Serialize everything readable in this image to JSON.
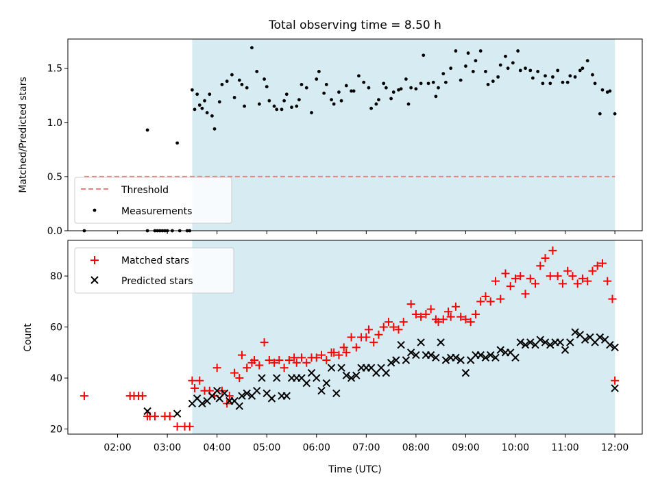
{
  "chart_data": [
    {
      "type": "scatter",
      "title": "Total observing time = 8.50 h",
      "ylabel": "Matched/Predicted stars",
      "xlabel": "",
      "ylim": [
        0,
        1.77
      ],
      "yticks": [
        "0.0",
        "0.5",
        "1.0",
        "1.5"
      ],
      "ytick_values": [
        0,
        0.5,
        1.0,
        1.5
      ],
      "xticks_values": [
        2,
        3,
        4,
        5,
        6,
        7,
        8,
        9,
        10,
        11,
        12
      ],
      "x_unit": "hours UTC",
      "xlim": [
        1.0,
        12.55
      ],
      "shaded_region": [
        3.5,
        12.0
      ],
      "shade_color": "#add8e6",
      "threshold_color": "#f08080",
      "point_color": "#000000",
      "legend_position": "lower left",
      "legend": [
        "Threshold",
        "Measurements"
      ],
      "threshold": {
        "name": "Threshold",
        "y": 0.5,
        "x": [
          1.33,
          12.0
        ]
      },
      "series": [
        {
          "name": "Measurements",
          "x": [
            1.33,
            2.6,
            2.6,
            2.75,
            2.8,
            2.85,
            2.9,
            2.95,
            3.0,
            3.1,
            3.2,
            3.25,
            3.4,
            3.45,
            3.5,
            3.55,
            3.6,
            3.65,
            3.7,
            3.75,
            3.8,
            3.85,
            3.9,
            3.95,
            4.05,
            4.1,
            4.2,
            4.3,
            4.35,
            4.45,
            4.5,
            4.55,
            4.6,
            4.7,
            4.8,
            4.85,
            4.95,
            5.0,
            5.05,
            5.15,
            5.2,
            5.3,
            5.35,
            5.4,
            5.5,
            5.6,
            5.65,
            5.7,
            5.8,
            5.9,
            6.0,
            6.05,
            6.15,
            6.2,
            6.3,
            6.35,
            6.45,
            6.5,
            6.6,
            6.7,
            6.75,
            6.85,
            6.95,
            7.05,
            7.1,
            7.2,
            7.25,
            7.35,
            7.4,
            7.5,
            7.55,
            7.65,
            7.7,
            7.8,
            7.85,
            7.9,
            8.0,
            8.1,
            8.15,
            8.25,
            8.35,
            8.4,
            8.45,
            8.55,
            8.6,
            8.7,
            8.8,
            8.9,
            9.0,
            9.05,
            9.15,
            9.2,
            9.3,
            9.4,
            9.45,
            9.55,
            9.65,
            9.7,
            9.8,
            9.85,
            9.95,
            10.05,
            10.1,
            10.2,
            10.3,
            10.35,
            10.45,
            10.55,
            10.6,
            10.7,
            10.75,
            10.85,
            10.95,
            11.05,
            11.1,
            11.2,
            11.3,
            11.35,
            11.45,
            11.55,
            11.6,
            11.7,
            11.75,
            11.85,
            11.9,
            12.0
          ],
          "y": [
            0.0,
            0.0,
            0.93,
            0.0,
            0.0,
            0.0,
            0.0,
            0.0,
            0.0,
            0.0,
            0.81,
            0.0,
            0.0,
            0.0,
            1.3,
            1.12,
            1.26,
            1.16,
            1.13,
            1.2,
            1.09,
            1.26,
            1.06,
            0.94,
            1.19,
            1.35,
            1.38,
            1.44,
            1.23,
            1.39,
            1.35,
            1.15,
            1.32,
            1.69,
            1.47,
            1.17,
            1.4,
            1.33,
            1.2,
            1.15,
            1.12,
            1.12,
            1.2,
            1.26,
            1.14,
            1.15,
            1.21,
            1.35,
            1.32,
            1.09,
            1.4,
            1.47,
            1.27,
            1.35,
            1.21,
            1.17,
            1.28,
            1.2,
            1.34,
            1.29,
            1.29,
            1.43,
            1.37,
            1.32,
            1.13,
            1.17,
            1.21,
            1.36,
            1.32,
            1.22,
            1.28,
            1.3,
            1.31,
            1.4,
            1.17,
            1.32,
            1.31,
            1.36,
            1.62,
            1.36,
            1.37,
            1.24,
            1.32,
            1.45,
            1.37,
            1.5,
            1.66,
            1.39,
            1.52,
            1.64,
            1.47,
            1.57,
            1.66,
            1.47,
            1.35,
            1.38,
            1.42,
            1.53,
            1.61,
            1.5,
            1.55,
            1.66,
            1.48,
            1.5,
            1.48,
            1.41,
            1.47,
            1.36,
            1.43,
            1.36,
            1.42,
            1.48,
            1.37,
            1.37,
            1.43,
            1.42,
            1.48,
            1.5,
            1.57,
            1.44,
            1.36,
            1.08,
            1.3,
            1.28,
            1.29,
            1.08
          ]
        }
      ]
    },
    {
      "type": "scatter",
      "title": "",
      "ylabel": "Count",
      "xlabel": "Time (UTC)",
      "ylim": [
        18,
        94
      ],
      "yticks": [
        "20",
        "40",
        "60",
        "80"
      ],
      "ytick_values": [
        20,
        40,
        60,
        80
      ],
      "xticks": [
        "02:00",
        "03:00",
        "04:00",
        "05:00",
        "06:00",
        "07:00",
        "08:00",
        "09:00",
        "10:00",
        "11:00",
        "12:00"
      ],
      "xticks_values": [
        2,
        3,
        4,
        5,
        6,
        7,
        8,
        9,
        10,
        11,
        12
      ],
      "x_unit": "hours UTC",
      "xlim": [
        1.0,
        12.55
      ],
      "shaded_region": [
        3.5,
        12.0
      ],
      "shade_color": "#add8e6",
      "legend_position": "upper left",
      "legend": [
        "Matched stars",
        "Predicted stars"
      ],
      "series": [
        {
          "name": "Matched stars",
          "marker": "+",
          "color": "#ff0000",
          "x": [
            1.33,
            2.25,
            2.33,
            2.42,
            2.5,
            2.6,
            2.65,
            2.75,
            2.95,
            3.05,
            3.2,
            3.35,
            3.45,
            3.5,
            3.55,
            3.65,
            3.75,
            3.85,
            3.95,
            4.0,
            4.1,
            4.2,
            4.25,
            4.35,
            4.45,
            4.5,
            4.6,
            4.7,
            4.75,
            4.85,
            4.95,
            5.05,
            5.15,
            5.25,
            5.35,
            5.45,
            5.55,
            5.6,
            5.7,
            5.8,
            5.9,
            6.0,
            6.1,
            6.2,
            6.3,
            6.35,
            6.45,
            6.55,
            6.6,
            6.7,
            6.8,
            6.9,
            7.0,
            7.05,
            7.15,
            7.25,
            7.35,
            7.45,
            7.55,
            7.65,
            7.75,
            7.9,
            8.0,
            8.1,
            8.2,
            8.3,
            8.4,
            8.45,
            8.55,
            8.65,
            8.7,
            8.8,
            8.9,
            9.0,
            9.1,
            9.2,
            9.3,
            9.4,
            9.5,
            9.6,
            9.7,
            9.8,
            9.9,
            10.0,
            10.1,
            10.2,
            10.3,
            10.4,
            10.5,
            10.6,
            10.7,
            10.75,
            10.85,
            10.95,
            11.05,
            11.15,
            11.25,
            11.35,
            11.45,
            11.55,
            11.65,
            11.75,
            11.85,
            11.95,
            12.0
          ],
          "y": [
            33,
            33,
            33,
            33,
            33,
            25,
            25,
            25,
            25,
            25,
            21,
            21,
            21,
            39,
            36,
            39,
            35,
            35,
            33,
            44,
            35,
            30,
            33,
            42,
            40,
            49,
            44,
            46,
            47,
            45,
            54,
            47,
            46,
            47,
            44,
            47,
            48,
            46,
            48,
            46,
            48,
            48,
            49,
            47,
            50,
            50,
            49,
            52,
            50,
            56,
            52,
            56,
            56,
            59,
            54,
            57,
            60,
            62,
            60,
            59,
            62,
            69,
            65,
            64,
            65,
            67,
            63,
            62,
            63,
            66,
            64,
            68,
            64,
            63,
            62,
            65,
            70,
            72,
            70,
            78,
            71,
            81,
            76,
            79,
            80,
            73,
            79,
            77,
            84,
            87,
            80,
            90,
            80,
            77,
            82,
            80,
            77,
            79,
            78,
            82,
            84,
            85,
            78,
            71,
            39
          ]
        },
        {
          "name": "Predicted stars",
          "marker": "x",
          "color": "#000000",
          "x": [
            2.6,
            3.2,
            3.5,
            3.6,
            3.7,
            3.8,
            3.9,
            4.0,
            4.05,
            4.15,
            4.25,
            4.35,
            4.45,
            4.5,
            4.6,
            4.7,
            4.8,
            4.9,
            5.0,
            5.1,
            5.2,
            5.3,
            5.4,
            5.5,
            5.6,
            5.7,
            5.8,
            5.9,
            6.0,
            6.1,
            6.2,
            6.3,
            6.4,
            6.5,
            6.6,
            6.7,
            6.8,
            6.9,
            7.0,
            7.1,
            7.2,
            7.3,
            7.4,
            7.5,
            7.6,
            7.7,
            7.8,
            7.9,
            8.0,
            8.1,
            8.2,
            8.3,
            8.4,
            8.5,
            8.6,
            8.7,
            8.8,
            8.9,
            9.0,
            9.1,
            9.2,
            9.3,
            9.4,
            9.5,
            9.6,
            9.7,
            9.8,
            9.9,
            10.0,
            10.1,
            10.2,
            10.3,
            10.4,
            10.5,
            10.6,
            10.7,
            10.8,
            10.9,
            11.0,
            11.1,
            11.2,
            11.3,
            11.4,
            11.5,
            11.6,
            11.7,
            11.8,
            11.9,
            12.0
          ],
          "y": [
            27,
            26,
            30,
            32,
            30,
            31,
            33,
            35,
            32,
            34,
            31,
            31,
            29,
            33,
            34,
            33,
            35,
            40,
            34,
            32,
            40,
            33,
            33,
            40,
            40,
            40,
            38,
            42,
            40,
            35,
            38,
            44,
            34,
            44,
            41,
            40,
            41,
            44,
            44,
            44,
            42,
            44,
            42,
            46,
            47,
            53,
            47,
            50,
            49,
            54,
            49,
            49,
            48,
            54,
            47,
            48,
            48,
            47,
            42,
            47,
            49,
            49,
            48,
            49,
            48,
            51,
            50,
            50,
            48,
            54,
            53,
            54,
            53,
            55,
            54,
            53,
            54,
            54,
            51,
            54,
            58,
            57,
            55,
            56,
            54,
            56,
            55,
            53,
            52
          ]
        },
        {
          "name": "",
          "marker": "x",
          "color": "#000000",
          "x": [
            12.0
          ],
          "y": [
            36
          ]
        }
      ]
    }
  ]
}
